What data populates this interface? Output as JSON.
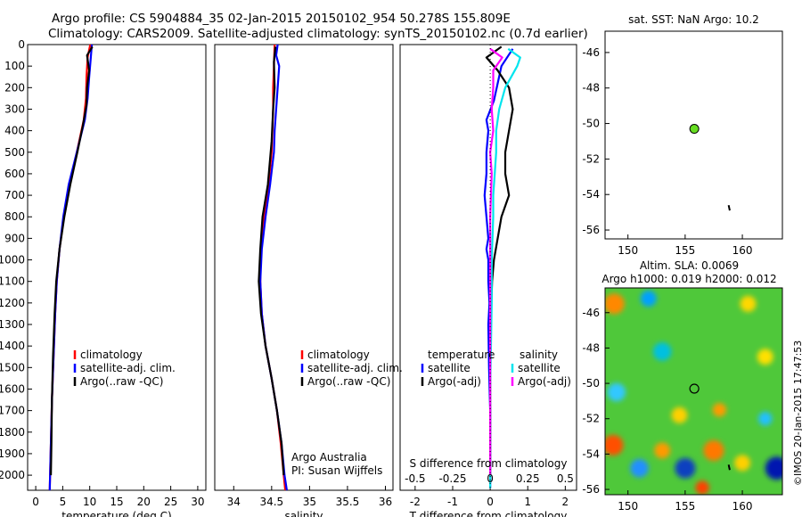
{
  "header": {
    "line1": "Argo profile: CS 5904884_35 02-Jan-2015 20150102_954 50.278S 155.809E",
    "line2": "Climatology: CARS2009. Satellite-adjusted climatology: synTS_20150102.nc (0.7d earlier)"
  },
  "colors": {
    "climatology": "#ff0000",
    "satellite": "#0000ff",
    "argo": "#000000",
    "sal_satellite": "#00e5ee",
    "sal_argo": "#ff00ff",
    "marker": "#66dd22"
  },
  "credits": {
    "org": "Argo Australia",
    "pi": "PI: Susan Wijffels",
    "imos": "©IMOS 20-Jan-2015 17:47:53"
  },
  "chart_data": [
    {
      "type": "line",
      "name": "temperature-profile",
      "xlabel": "temperature (deg C)",
      "ylabel": "",
      "xlim": [
        -1.5,
        31.5
      ],
      "ylim": [
        2070,
        0
      ],
      "xticks": [
        0,
        5,
        10,
        15,
        20,
        25,
        30
      ],
      "yticks": [
        0,
        100,
        200,
        300,
        400,
        500,
        600,
        700,
        800,
        900,
        1000,
        1100,
        1200,
        1300,
        1400,
        1500,
        1600,
        1700,
        1800,
        1900,
        2000
      ],
      "legend": [
        "climatology",
        "satellite-adj. clim.",
        "Argo(..raw -QC)"
      ],
      "series": [
        {
          "name": "climatology",
          "points": [
            [
              10.1,
              0
            ],
            [
              9.6,
              60
            ],
            [
              9.4,
              150
            ],
            [
              9.3,
              250
            ],
            [
              8.9,
              350
            ],
            [
              7.6,
              500
            ],
            [
              6.2,
              650
            ],
            [
              5.2,
              800
            ],
            [
              4.4,
              950
            ],
            [
              3.9,
              1100
            ],
            [
              3.6,
              1250
            ],
            [
              3.3,
              1450
            ],
            [
              3.0,
              1650
            ],
            [
              2.8,
              1850
            ],
            [
              2.6,
              2070
            ]
          ]
        },
        {
          "name": "satellite",
          "points": [
            [
              10.4,
              0
            ],
            [
              10.2,
              60
            ],
            [
              9.9,
              150
            ],
            [
              9.6,
              250
            ],
            [
              9.1,
              350
            ],
            [
              7.6,
              500
            ],
            [
              6.1,
              650
            ],
            [
              5.1,
              800
            ],
            [
              4.4,
              950
            ],
            [
              3.9,
              1100
            ],
            [
              3.6,
              1250
            ],
            [
              3.3,
              1450
            ],
            [
              3.0,
              1650
            ],
            [
              2.8,
              1850
            ],
            [
              2.6,
              2070
            ]
          ]
        },
        {
          "name": "argo",
          "points": [
            [
              10.5,
              10
            ],
            [
              9.5,
              50
            ],
            [
              9.9,
              120
            ],
            [
              9.5,
              200
            ],
            [
              9.4,
              280
            ],
            [
              8.7,
              380
            ],
            [
              7.7,
              500
            ],
            [
              6.4,
              650
            ],
            [
              5.3,
              800
            ],
            [
              4.4,
              950
            ],
            [
              3.8,
              1100
            ],
            [
              3.5,
              1250
            ],
            [
              3.2,
              1450
            ],
            [
              3.0,
              1650
            ],
            [
              2.9,
              1850
            ],
            [
              2.8,
              2000
            ]
          ]
        }
      ]
    },
    {
      "type": "line",
      "name": "salinity-profile",
      "xlabel": "salinity",
      "xlim": [
        33.75,
        36.1
      ],
      "ylim": [
        2070,
        0
      ],
      "xticks": [
        34,
        34.5,
        35,
        35.5,
        36
      ],
      "xticklabels": [
        "34",
        "34.5",
        "35",
        "35.5",
        "36"
      ],
      "legend": [
        "climatology",
        "satellite-adj. clim.",
        "Argo(..raw -QC)"
      ],
      "series": [
        {
          "name": "climatology",
          "points": [
            [
              34.54,
              0
            ],
            [
              34.53,
              100
            ],
            [
              34.52,
              200
            ],
            [
              34.52,
              300
            ],
            [
              34.51,
              400
            ],
            [
              34.5,
              500
            ],
            [
              34.46,
              650
            ],
            [
              34.4,
              800
            ],
            [
              34.36,
              950
            ],
            [
              34.35,
              1100
            ],
            [
              34.37,
              1250
            ],
            [
              34.42,
              1400
            ],
            [
              34.5,
              1550
            ],
            [
              34.57,
              1700
            ],
            [
              34.62,
              1850
            ],
            [
              34.66,
              2000
            ],
            [
              34.68,
              2070
            ]
          ]
        },
        {
          "name": "satellite",
          "points": [
            [
              34.58,
              0
            ],
            [
              34.56,
              50
            ],
            [
              34.6,
              100
            ],
            [
              34.58,
              200
            ],
            [
              34.56,
              300
            ],
            [
              34.54,
              400
            ],
            [
              34.53,
              500
            ],
            [
              34.48,
              650
            ],
            [
              34.42,
              800
            ],
            [
              34.37,
              950
            ],
            [
              34.35,
              1100
            ],
            [
              34.37,
              1250
            ],
            [
              34.42,
              1400
            ],
            [
              34.5,
              1550
            ],
            [
              34.57,
              1700
            ],
            [
              34.63,
              1850
            ],
            [
              34.67,
              2000
            ],
            [
              34.7,
              2070
            ]
          ]
        },
        {
          "name": "argo",
          "points": [
            [
              34.55,
              10
            ],
            [
              34.53,
              80
            ],
            [
              34.54,
              200
            ],
            [
              34.52,
              300
            ],
            [
              34.5,
              450
            ],
            [
              34.45,
              650
            ],
            [
              34.38,
              800
            ],
            [
              34.35,
              950
            ],
            [
              34.33,
              1100
            ],
            [
              34.36,
              1250
            ],
            [
              34.42,
              1400
            ],
            [
              34.5,
              1550
            ],
            [
              34.57,
              1700
            ],
            [
              34.63,
              1850
            ],
            [
              34.66,
              2000
            ]
          ]
        }
      ]
    },
    {
      "type": "line",
      "name": "difference-profile",
      "xlabel": "T difference from climatology",
      "x2label": "S difference from climatology",
      "xlim": [
        -2.4,
        2.3
      ],
      "ylim": [
        2070,
        0
      ],
      "xticks": [
        -2,
        -1,
        0,
        1,
        2
      ],
      "xticklabels": [
        "-2",
        "-1",
        "0",
        "1",
        "2"
      ],
      "x2ticks": [
        -0.5,
        -0.25,
        0,
        0.25,
        0.5
      ],
      "x2ticklabels": [
        "-0.5",
        "-0.25",
        "0",
        "0.25",
        "0.5"
      ],
      "legend_temperature": {
        "title": "temperature",
        "items": [
          "satellite",
          "Argo(-adj)"
        ]
      },
      "legend_salinity": {
        "title": "salinity",
        "items": [
          "satellite",
          "Argo(-adj)"
        ]
      },
      "series": [
        {
          "name": "T satellite",
          "points": [
            [
              0.6,
              20
            ],
            [
              0.3,
              100
            ],
            [
              0.2,
              180
            ],
            [
              0.1,
              260
            ],
            [
              -0.1,
              350
            ],
            [
              -0.05,
              400
            ],
            [
              -0.1,
              500
            ],
            [
              -0.1,
              600
            ],
            [
              -0.15,
              700
            ],
            [
              -0.1,
              800
            ],
            [
              -0.05,
              900
            ],
            [
              -0.1,
              950
            ],
            [
              -0.05,
              1000
            ],
            [
              -0.05,
              1100
            ],
            [
              -0.02,
              1200
            ],
            [
              -0.05,
              1300
            ],
            [
              -0.03,
              1500
            ],
            [
              0,
              1700
            ],
            [
              0,
              2060
            ]
          ]
        },
        {
          "name": "T Argo(-adj)",
          "points": [
            [
              0.3,
              10
            ],
            [
              -0.1,
              60
            ],
            [
              0.2,
              120
            ],
            [
              0.5,
              200
            ],
            [
              0.6,
              300
            ],
            [
              0.5,
              400
            ],
            [
              0.4,
              500
            ],
            [
              0.4,
              600
            ],
            [
              0.5,
              700
            ],
            [
              0.3,
              800
            ],
            [
              0.2,
              900
            ],
            [
              0.1,
              1000
            ],
            [
              0.05,
              1100
            ],
            [
              0.03,
              1200
            ],
            [
              0,
              1400
            ],
            [
              0,
              2000
            ]
          ]
        },
        {
          "name": "S satellite",
          "points": [
            [
              0.12,
              20
            ],
            [
              0.2,
              60
            ],
            [
              0.18,
              100
            ],
            [
              0.1,
              200
            ],
            [
              0.06,
              300
            ],
            [
              0.04,
              400
            ],
            [
              0.04,
              500
            ],
            [
              0.03,
              600
            ],
            [
              0.02,
              700
            ],
            [
              0.02,
              800
            ],
            [
              0.01,
              1000
            ],
            [
              0.01,
              1200
            ],
            [
              0,
              1600
            ],
            [
              0,
              2060
            ]
          ]
        },
        {
          "name": "S Argo(-adj)",
          "points": [
            [
              0.0,
              20
            ],
            [
              0.08,
              60
            ],
            [
              0.02,
              120
            ],
            [
              0.02,
              200
            ],
            [
              0.01,
              300
            ],
            [
              0.02,
              400
            ],
            [
              0.0,
              500
            ],
            [
              0.01,
              600
            ],
            [
              0.0,
              800
            ],
            [
              0.0,
              1000
            ],
            [
              0.0,
              1200
            ],
            [
              0,
              2000
            ]
          ]
        }
      ]
    },
    {
      "type": "scatter",
      "name": "position-map",
      "title": "sat. SST: NaN Argo: 10.2",
      "xlim": [
        148,
        163.5
      ],
      "ylim": [
        -56.5,
        -44.8
      ],
      "xticks": [
        150,
        155,
        160
      ],
      "yticks": [
        -46,
        -48,
        -50,
        -52,
        -54,
        -56
      ],
      "yticklabels": [
        "-46",
        "-48",
        "-50",
        "-52",
        "-54",
        "-56"
      ],
      "profile": {
        "lon": 155.8,
        "lat": -50.3
      },
      "track": [
        [
          158.8,
          -54.6
        ],
        [
          158.9,
          -54.9
        ]
      ]
    },
    {
      "type": "heatmap",
      "name": "sla-map",
      "title": "Altim. SLA: 0.0069",
      "subtitle": "Argo h1000: 0.019 h2000: 0.012",
      "xlim": [
        148,
        163.5
      ],
      "ylim": [
        -56.3,
        -44.6
      ],
      "xticks": [
        150,
        155,
        160
      ],
      "yticks": [
        -46,
        -48,
        -50,
        -52,
        -54,
        -56
      ],
      "yticklabels": [
        "-46",
        "-48",
        "-50",
        "-52",
        "-54",
        "-56"
      ],
      "profile": {
        "lon": 155.8,
        "lat": -50.3
      },
      "background_colour": "#4fc83a",
      "blobs": [
        {
          "lon": 148.8,
          "lat": -45.5,
          "radius": 0.9,
          "color": "#ff8800"
        },
        {
          "lon": 151.8,
          "lat": -45.2,
          "radius": 0.7,
          "color": "#00a0ff"
        },
        {
          "lon": 153.0,
          "lat": -48.2,
          "radius": 0.8,
          "color": "#00c0e0"
        },
        {
          "lon": 149.0,
          "lat": -50.5,
          "radius": 0.8,
          "color": "#30c8ff"
        },
        {
          "lon": 160.5,
          "lat": -45.5,
          "radius": 0.7,
          "color": "#ffd800"
        },
        {
          "lon": 162.0,
          "lat": -48.5,
          "radius": 0.7,
          "color": "#ffe000"
        },
        {
          "lon": 154.5,
          "lat": -51.8,
          "radius": 0.7,
          "color": "#ffd000"
        },
        {
          "lon": 158.0,
          "lat": -51.5,
          "radius": 0.6,
          "color": "#ff9a00"
        },
        {
          "lon": 148.7,
          "lat": -53.5,
          "radius": 0.9,
          "color": "#ff5000"
        },
        {
          "lon": 151.0,
          "lat": -54.8,
          "radius": 0.8,
          "color": "#2090ff"
        },
        {
          "lon": 153.0,
          "lat": -53.8,
          "radius": 0.7,
          "color": "#ff9a00"
        },
        {
          "lon": 155.0,
          "lat": -54.8,
          "radius": 0.9,
          "color": "#1040c0"
        },
        {
          "lon": 157.5,
          "lat": -53.8,
          "radius": 0.9,
          "color": "#ff7800"
        },
        {
          "lon": 156.5,
          "lat": -55.9,
          "radius": 0.6,
          "color": "#ff4000"
        },
        {
          "lon": 160.0,
          "lat": -54.5,
          "radius": 0.7,
          "color": "#ffd000"
        },
        {
          "lon": 163.0,
          "lat": -54.8,
          "radius": 1.0,
          "color": "#0018b0"
        },
        {
          "lon": 162.0,
          "lat": -52.0,
          "radius": 0.6,
          "color": "#20c0ff"
        }
      ]
    }
  ]
}
